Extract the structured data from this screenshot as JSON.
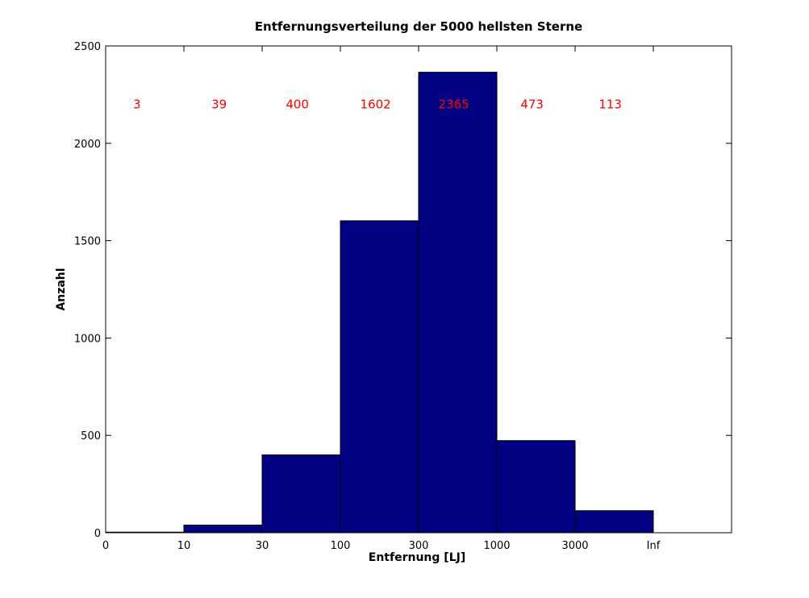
{
  "chart_data": {
    "type": "bar",
    "title": "Entfernungsverteilung der 5000 hellsten Sterne",
    "xlabel": "Entfernung [LJ]",
    "ylabel": "Anzahl",
    "x_tick_labels": [
      "0",
      "10",
      "30",
      "100",
      "300",
      "1000",
      "3000",
      "Inf"
    ],
    "categories": [
      "0–10",
      "10–30",
      "30–100",
      "100–300",
      "300–1000",
      "1000–3000",
      "3000–Inf"
    ],
    "values": [
      3,
      39,
      400,
      1602,
      2365,
      473,
      113
    ],
    "data_labels": [
      "3",
      "39",
      "400",
      "1602",
      "2365",
      "473",
      "113"
    ],
    "y_ticks": [
      0,
      500,
      1000,
      1500,
      2000,
      2500
    ],
    "ylim": [
      0,
      2500
    ],
    "grid": false,
    "bar_color": "#000080",
    "label_color": "#ff0000"
  }
}
